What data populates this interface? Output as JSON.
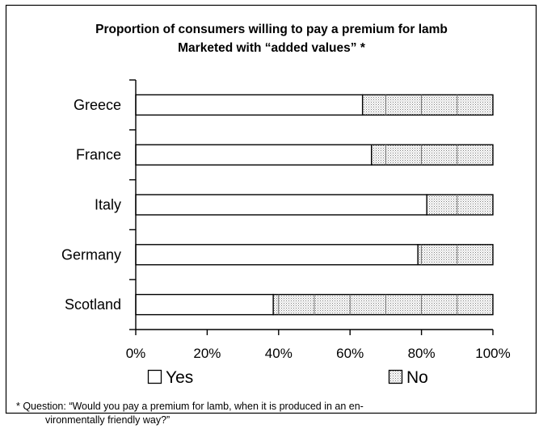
{
  "chart_data": {
    "type": "bar",
    "stacked": true,
    "orientation": "horizontal",
    "title": "Proportion of consumers willing to pay a premium for lamb",
    "subtitle": "Marketed with “added values” *",
    "categories": [
      "Greece",
      "France",
      "Italy",
      "Germany",
      "Scotland"
    ],
    "series": [
      {
        "name": "Yes",
        "values": [
          63.5,
          66,
          81.5,
          79,
          38.5
        ]
      },
      {
        "name": "No",
        "values": [
          36.5,
          34,
          18.5,
          21,
          61.5
        ]
      }
    ],
    "xlim": [
      0,
      100
    ],
    "xticks": [
      "0%",
      "20%",
      "40%",
      "60%",
      "80%",
      "100%"
    ],
    "grid": false,
    "legend": "bottom",
    "colors": {
      "yes": "#ffffff",
      "no": "#e4e4e4",
      "no_pattern": "stippled with vertical stripes"
    },
    "footnote": [
      "* Question: “Would you pay a premium for lamb, when it is produced in an en-",
      "vironmentally friendly way?”"
    ]
  }
}
